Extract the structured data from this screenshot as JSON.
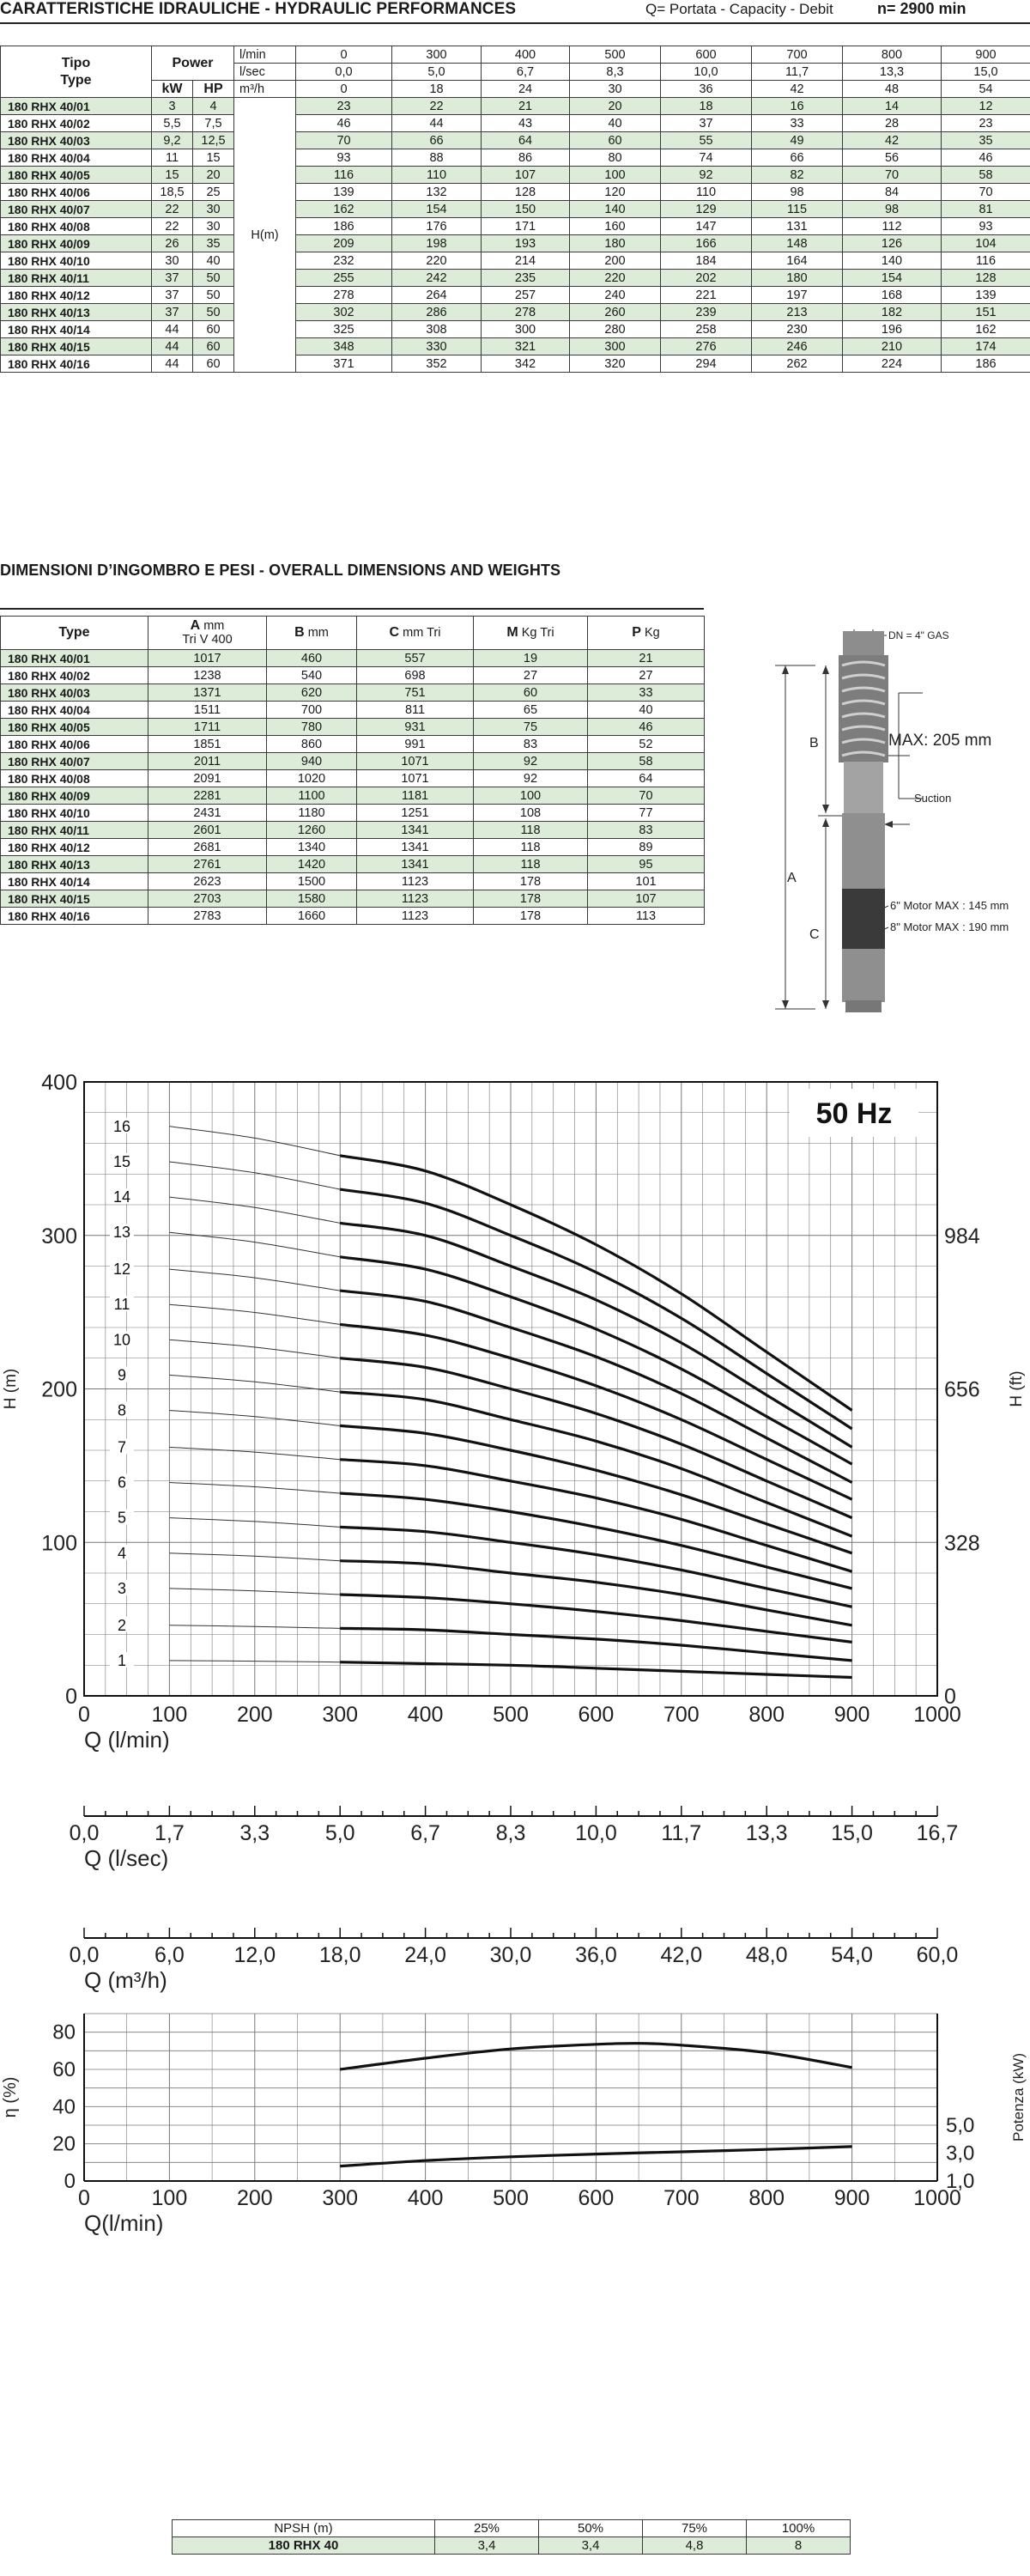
{
  "perf": {
    "title": "CARATTERISTICHE IDRAULICHE - HYDRAULIC PERFORMANCES",
    "legend": "Q= Portata - Capacity - Debit",
    "speed": "n= 2900 min",
    "col_tipo": "Tipo",
    "col_type": "Type",
    "col_power": "Power",
    "col_kw": "kW",
    "col_hp": "HP",
    "unit_lmin": "l/min",
    "unit_lsec": "l/sec",
    "unit_m3h": "m³/h",
    "head_label": "H(m)",
    "q_lmin": [
      "0",
      "300",
      "400",
      "500",
      "600",
      "700",
      "800",
      "900"
    ],
    "q_lsec": [
      "0,0",
      "5,0",
      "6,7",
      "8,3",
      "10,0",
      "11,7",
      "13,3",
      "15,0"
    ],
    "q_m3h": [
      "0",
      "18",
      "24",
      "30",
      "36",
      "42",
      "48",
      "54"
    ],
    "rows": [
      {
        "type": "180 RHX 40/01",
        "kw": "3",
        "hp": "4",
        "h": [
          "23",
          "22",
          "21",
          "20",
          "18",
          "16",
          "14",
          "12"
        ]
      },
      {
        "type": "180 RHX 40/02",
        "kw": "5,5",
        "hp": "7,5",
        "h": [
          "46",
          "44",
          "43",
          "40",
          "37",
          "33",
          "28",
          "23"
        ]
      },
      {
        "type": "180 RHX 40/03",
        "kw": "9,2",
        "hp": "12,5",
        "h": [
          "70",
          "66",
          "64",
          "60",
          "55",
          "49",
          "42",
          "35"
        ]
      },
      {
        "type": "180 RHX 40/04",
        "kw": "11",
        "hp": "15",
        "h": [
          "93",
          "88",
          "86",
          "80",
          "74",
          "66",
          "56",
          "46"
        ]
      },
      {
        "type": "180 RHX 40/05",
        "kw": "15",
        "hp": "20",
        "h": [
          "116",
          "110",
          "107",
          "100",
          "92",
          "82",
          "70",
          "58"
        ]
      },
      {
        "type": "180 RHX 40/06",
        "kw": "18,5",
        "hp": "25",
        "h": [
          "139",
          "132",
          "128",
          "120",
          "110",
          "98",
          "84",
          "70"
        ]
      },
      {
        "type": "180 RHX 40/07",
        "kw": "22",
        "hp": "30",
        "h": [
          "162",
          "154",
          "150",
          "140",
          "129",
          "115",
          "98",
          "81"
        ]
      },
      {
        "type": "180 RHX 40/08",
        "kw": "22",
        "hp": "30",
        "h": [
          "186",
          "176",
          "171",
          "160",
          "147",
          "131",
          "112",
          "93"
        ]
      },
      {
        "type": "180 RHX 40/09",
        "kw": "26",
        "hp": "35",
        "h": [
          "209",
          "198",
          "193",
          "180",
          "166",
          "148",
          "126",
          "104"
        ]
      },
      {
        "type": "180 RHX 40/10",
        "kw": "30",
        "hp": "40",
        "h": [
          "232",
          "220",
          "214",
          "200",
          "184",
          "164",
          "140",
          "116"
        ]
      },
      {
        "type": "180 RHX 40/11",
        "kw": "37",
        "hp": "50",
        "h": [
          "255",
          "242",
          "235",
          "220",
          "202",
          "180",
          "154",
          "128"
        ]
      },
      {
        "type": "180 RHX 40/12",
        "kw": "37",
        "hp": "50",
        "h": [
          "278",
          "264",
          "257",
          "240",
          "221",
          "197",
          "168",
          "139"
        ]
      },
      {
        "type": "180 RHX 40/13",
        "kw": "37",
        "hp": "50",
        "h": [
          "302",
          "286",
          "278",
          "260",
          "239",
          "213",
          "182",
          "151"
        ]
      },
      {
        "type": "180 RHX 40/14",
        "kw": "44",
        "hp": "60",
        "h": [
          "325",
          "308",
          "300",
          "280",
          "258",
          "230",
          "196",
          "162"
        ]
      },
      {
        "type": "180 RHX 40/15",
        "kw": "44",
        "hp": "60",
        "h": [
          "348",
          "330",
          "321",
          "300",
          "276",
          "246",
          "210",
          "174"
        ]
      },
      {
        "type": "180 RHX 40/16",
        "kw": "44",
        "hp": "60",
        "h": [
          "371",
          "352",
          "342",
          "320",
          "294",
          "262",
          "224",
          "186"
        ]
      }
    ]
  },
  "dims": {
    "title": "DIMENSIONI D’INGOMBRO E PESI - OVERALL DIMENSIONS AND WEIGHTS",
    "col_type": "Type",
    "col_a": "A",
    "col_a_unit": "mm",
    "col_a_sub": "Tri V 400",
    "col_b": "B",
    "col_b_unit": "mm",
    "col_c": "C",
    "col_c_unit": "mm Tri",
    "col_m": "M",
    "col_m_unit": "Kg Tri",
    "col_p": "P",
    "col_p_unit": "Kg",
    "rows": [
      {
        "type": "180 RHX 40/01",
        "a": "1017",
        "b": "460",
        "c": "557",
        "m": "19",
        "p": "21"
      },
      {
        "type": "180 RHX 40/02",
        "a": "1238",
        "b": "540",
        "c": "698",
        "m": "27",
        "p": "27"
      },
      {
        "type": "180 RHX 40/03",
        "a": "1371",
        "b": "620",
        "c": "751",
        "m": "60",
        "p": "33"
      },
      {
        "type": "180 RHX 40/04",
        "a": "1511",
        "b": "700",
        "c": "811",
        "m": "65",
        "p": "40"
      },
      {
        "type": "180 RHX 40/05",
        "a": "1711",
        "b": "780",
        "c": "931",
        "m": "75",
        "p": "46"
      },
      {
        "type": "180 RHX 40/06",
        "a": "1851",
        "b": "860",
        "c": "991",
        "m": "83",
        "p": "52"
      },
      {
        "type": "180 RHX 40/07",
        "a": "2011",
        "b": "940",
        "c": "1071",
        "m": "92",
        "p": "58"
      },
      {
        "type": "180 RHX 40/08",
        "a": "2091",
        "b": "1020",
        "c": "1071",
        "m": "92",
        "p": "64"
      },
      {
        "type": "180 RHX 40/09",
        "a": "2281",
        "b": "1100",
        "c": "1181",
        "m": "100",
        "p": "70"
      },
      {
        "type": "180 RHX 40/10",
        "a": "2431",
        "b": "1180",
        "c": "1251",
        "m": "108",
        "p": "77"
      },
      {
        "type": "180 RHX 40/11",
        "a": "2601",
        "b": "1260",
        "c": "1341",
        "m": "118",
        "p": "83"
      },
      {
        "type": "180 RHX 40/12",
        "a": "2681",
        "b": "1340",
        "c": "1341",
        "m": "118",
        "p": "89"
      },
      {
        "type": "180 RHX 40/13",
        "a": "2761",
        "b": "1420",
        "c": "1341",
        "m": "118",
        "p": "95"
      },
      {
        "type": "180 RHX 40/14",
        "a": "2623",
        "b": "1500",
        "c": "1123",
        "m": "178",
        "p": "101"
      },
      {
        "type": "180 RHX 40/15",
        "a": "2703",
        "b": "1580",
        "c": "1123",
        "m": "178",
        "p": "107"
      },
      {
        "type": "180 RHX 40/16",
        "a": "2783",
        "b": "1660",
        "c": "1123",
        "m": "178",
        "p": "113"
      }
    ],
    "drawing": {
      "dn": "DN = 4\" GAS",
      "max": "MAX: 205 mm",
      "suction": "Suction",
      "motor6": "6\" Motor MAX : 145 mm",
      "motor8": "8\" Motor MAX : 190 mm",
      "label_a": "A",
      "label_b": "B",
      "label_c": "C"
    }
  },
  "npsh": {
    "col_label": "NPSH (m)",
    "cols": [
      "25%",
      "50%",
      "75%",
      "100%"
    ],
    "row_type": "180 RHX 40",
    "values": [
      "3,4",
      "3,4",
      "4,8",
      "8"
    ]
  },
  "colors": {
    "row_green": "#dcecd8",
    "curve": "#111111",
    "grid": "#555555"
  },
  "chart_data": [
    {
      "type": "line",
      "title": "50 Hz",
      "xlabel": "Q (l/min)",
      "ylabel": "H (m)",
      "ylabel_right": "H (ft)",
      "xlim": [
        0,
        1000
      ],
      "ylim": [
        0,
        400
      ],
      "xticks": [
        "0",
        "100",
        "200",
        "300",
        "400",
        "500",
        "600",
        "700",
        "800",
        "900",
        "1000"
      ],
      "yticks": [
        "0",
        "100",
        "200",
        "300",
        "400"
      ],
      "yticks_right": [
        {
          "label": "0",
          "y": 0
        },
        {
          "label": "328",
          "y": 100
        },
        {
          "label": "656",
          "y": 200
        },
        {
          "label": "984",
          "y": 300
        }
      ],
      "x": [
        0,
        300,
        400,
        500,
        600,
        700,
        800,
        900
      ],
      "series": [
        {
          "name": "1",
          "values": [
            23,
            22,
            21,
            20,
            18,
            16,
            14,
            12
          ]
        },
        {
          "name": "2",
          "values": [
            46,
            44,
            43,
            40,
            37,
            33,
            28,
            23
          ]
        },
        {
          "name": "3",
          "values": [
            70,
            66,
            64,
            60,
            55,
            49,
            42,
            35
          ]
        },
        {
          "name": "4",
          "values": [
            93,
            88,
            86,
            80,
            74,
            66,
            56,
            46
          ]
        },
        {
          "name": "5",
          "values": [
            116,
            110,
            107,
            100,
            92,
            82,
            70,
            58
          ]
        },
        {
          "name": "6",
          "values": [
            139,
            132,
            128,
            120,
            110,
            98,
            84,
            70
          ]
        },
        {
          "name": "7",
          "values": [
            162,
            154,
            150,
            140,
            129,
            115,
            98,
            81
          ]
        },
        {
          "name": "8",
          "values": [
            186,
            176,
            171,
            160,
            147,
            131,
            112,
            93
          ]
        },
        {
          "name": "9",
          "values": [
            209,
            198,
            193,
            180,
            166,
            148,
            126,
            104
          ]
        },
        {
          "name": "10",
          "values": [
            232,
            220,
            214,
            200,
            184,
            164,
            140,
            116
          ]
        },
        {
          "name": "11",
          "values": [
            255,
            242,
            235,
            220,
            202,
            180,
            154,
            128
          ]
        },
        {
          "name": "12",
          "values": [
            278,
            264,
            257,
            240,
            221,
            197,
            168,
            139
          ]
        },
        {
          "name": "13",
          "values": [
            302,
            286,
            278,
            260,
            239,
            213,
            182,
            151
          ]
        },
        {
          "name": "14",
          "values": [
            325,
            308,
            300,
            280,
            258,
            230,
            196,
            162
          ]
        },
        {
          "name": "15",
          "values": [
            348,
            330,
            321,
            300,
            276,
            246,
            210,
            174
          ]
        },
        {
          "name": "16",
          "values": [
            371,
            352,
            342,
            320,
            294,
            262,
            224,
            186
          ]
        }
      ],
      "operating_range": [
        300,
        900
      ]
    },
    {
      "type": "axis",
      "xlabel": "Q (l/sec)",
      "xlim": [
        0,
        16.7
      ],
      "xticks": [
        "0,0",
        "1,7",
        "3,3",
        "5,0",
        "6,7",
        "8,3",
        "10,0",
        "11,7",
        "13,3",
        "15,0",
        "16,7"
      ]
    },
    {
      "type": "axis",
      "xlabel": "Q (m³/h)",
      "xlim": [
        0,
        60
      ],
      "xticks": [
        "0,0",
        "6,0",
        "12,0",
        "18,0",
        "24,0",
        "30,0",
        "36,0",
        "42,0",
        "48,0",
        "54,0",
        "60,0"
      ]
    },
    {
      "type": "line",
      "xlabel": "Q(l/min)",
      "ylabel": "η (%)",
      "ylabel_right": "Potenza (kW)",
      "xlim": [
        0,
        1000
      ],
      "ylim": [
        0,
        90
      ],
      "xticks": [
        "0",
        "100",
        "200",
        "300",
        "400",
        "500",
        "600",
        "700",
        "800",
        "900",
        "1000"
      ],
      "yticks": [
        "0",
        "20",
        "40",
        "60",
        "80"
      ],
      "yticks_right": [
        {
          "label": "1,0",
          "y": 0
        },
        {
          "label": "3,0",
          "y": 15
        },
        {
          "label": "5,0",
          "y": 30
        }
      ],
      "series": [
        {
          "x": [
            300,
            400,
            500,
            600,
            650,
            700,
            800,
            900
          ],
          "values": [
            60,
            66,
            71,
            73.5,
            74,
            73,
            69,
            61
          ]
        },
        {
          "x": [
            300,
            400,
            500,
            600,
            700,
            800,
            900
          ],
          "values": [
            8,
            11,
            13,
            14.5,
            15.7,
            17,
            18.5
          ]
        }
      ]
    }
  ]
}
